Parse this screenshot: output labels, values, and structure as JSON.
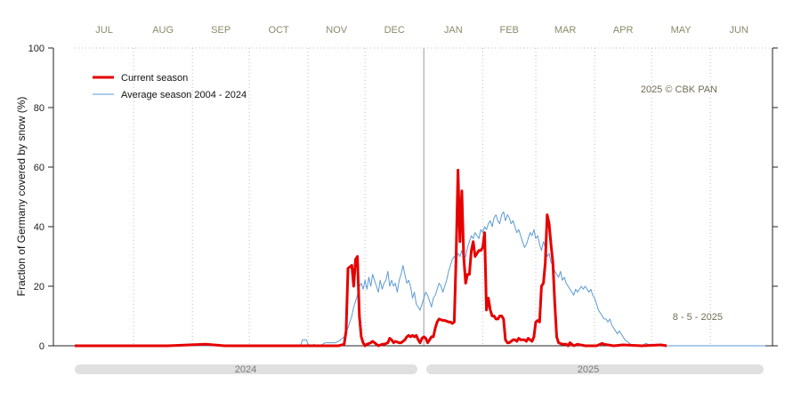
{
  "chart_data": {
    "type": "line",
    "ylabel": "Fraction of  Germany  covered by snow (%)",
    "ylim": [
      0,
      100
    ],
    "yticks": [
      0,
      20,
      40,
      60,
      80,
      100
    ],
    "months": [
      "JUL",
      "AUG",
      "SEP",
      "OCT",
      "NOV",
      "DEC",
      "JAN",
      "FEB",
      "MAR",
      "APR",
      "MAY",
      "JUN"
    ],
    "years": [
      "2024",
      "2025"
    ],
    "copyright": "2025  © CBK PAN",
    "date_stamp": "8 - 5 - 2025",
    "grid": "dotted vertical month lines",
    "legend_position": "top-left",
    "x_unit": "day of season (day 1 = 1 Jul)",
    "colors": {
      "current": "#e60000",
      "average": "#5b9bd5"
    },
    "series": [
      {
        "name": "Current season",
        "points": [
          [
            1,
            0
          ],
          [
            50,
            0
          ],
          [
            70,
            0.5
          ],
          [
            80,
            0
          ],
          [
            120,
            0
          ],
          [
            140,
            0
          ],
          [
            143,
            0.5
          ],
          [
            144,
            5
          ],
          [
            145,
            26
          ],
          [
            147,
            27
          ],
          [
            148,
            20
          ],
          [
            149,
            29
          ],
          [
            150,
            30
          ],
          [
            151,
            10
          ],
          [
            152,
            3
          ],
          [
            153,
            1
          ],
          [
            154,
            0
          ],
          [
            155,
            0.5
          ],
          [
            157,
            1
          ],
          [
            158,
            1.5
          ],
          [
            159,
            1
          ],
          [
            160,
            0.5
          ],
          [
            161,
            0
          ],
          [
            163,
            0.5
          ],
          [
            164,
            0.5
          ],
          [
            166,
            1
          ],
          [
            167,
            2.5
          ],
          [
            168,
            2
          ],
          [
            169,
            1
          ],
          [
            170,
            1.5
          ],
          [
            172,
            1
          ],
          [
            173,
            1
          ],
          [
            174,
            1.5
          ],
          [
            175,
            2
          ],
          [
            176,
            3
          ],
          [
            177,
            3.5
          ],
          [
            178,
            3
          ],
          [
            179,
            3.5
          ],
          [
            180,
            3
          ],
          [
            181,
            3.5
          ],
          [
            182,
            2
          ],
          [
            183,
            1
          ],
          [
            184,
            2.5
          ],
          [
            185,
            3
          ],
          [
            186,
            2.5
          ],
          [
            187,
            1
          ],
          [
            188,
            2
          ],
          [
            189,
            3
          ],
          [
            190,
            3
          ],
          [
            191,
            6
          ],
          [
            192,
            8
          ],
          [
            193,
            9
          ],
          [
            195,
            8.5
          ],
          [
            196,
            8.5
          ],
          [
            198,
            8
          ],
          [
            199,
            8
          ],
          [
            200,
            7.5
          ],
          [
            201,
            8
          ],
          [
            202,
            30
          ],
          [
            203,
            59
          ],
          [
            204,
            35
          ],
          [
            205,
            52
          ],
          [
            206,
            30
          ],
          [
            207,
            21
          ],
          [
            208,
            24
          ],
          [
            209,
            24
          ],
          [
            210,
            32
          ],
          [
            211,
            35
          ],
          [
            212,
            30
          ],
          [
            213,
            31
          ],
          [
            214,
            32
          ],
          [
            215,
            32
          ],
          [
            216,
            33
          ],
          [
            217,
            38
          ],
          [
            218,
            12
          ],
          [
            219,
            16
          ],
          [
            220,
            12
          ],
          [
            221,
            10
          ],
          [
            222,
            10
          ],
          [
            223,
            9
          ],
          [
            224,
            9
          ],
          [
            225,
            10
          ],
          [
            226,
            10
          ],
          [
            227,
            9
          ],
          [
            228,
            2
          ],
          [
            229,
            1
          ],
          [
            230,
            1
          ],
          [
            231,
            1.5
          ],
          [
            232,
            2
          ],
          [
            233,
            2
          ],
          [
            234,
            1.5
          ],
          [
            235,
            2.5
          ],
          [
            236,
            2
          ],
          [
            237,
            2
          ],
          [
            238,
            2
          ],
          [
            239,
            1.5
          ],
          [
            240,
            2.5
          ],
          [
            241,
            2
          ],
          [
            242,
            1.5
          ],
          [
            243,
            3
          ],
          [
            244,
            8
          ],
          [
            245,
            8.5
          ],
          [
            246,
            8
          ],
          [
            247,
            20
          ],
          [
            248,
            21
          ],
          [
            249,
            28
          ],
          [
            250,
            44
          ],
          [
            251,
            41
          ],
          [
            252,
            34
          ],
          [
            253,
            28
          ],
          [
            254,
            14
          ],
          [
            255,
            3
          ],
          [
            256,
            1
          ],
          [
            258,
            0.5
          ],
          [
            260,
            0.5
          ],
          [
            261,
            0
          ],
          [
            262,
            1
          ],
          [
            263,
            0.5
          ],
          [
            264,
            0
          ],
          [
            266,
            0.5
          ],
          [
            270,
            0
          ],
          [
            276,
            0
          ],
          [
            278,
            0.5
          ],
          [
            279,
            0.8
          ],
          [
            280,
            0.5
          ],
          [
            285,
            0
          ],
          [
            290,
            0.3
          ],
          [
            300,
            0
          ],
          [
            310,
            0.3
          ],
          [
            313,
            0
          ]
        ]
      },
      {
        "name": "Average season 2004 - 2024",
        "points": [
          [
            1,
            0
          ],
          [
            100,
            0
          ],
          [
            120,
            0
          ],
          [
            121,
            2
          ],
          [
            123,
            2
          ],
          [
            124,
            0.5
          ],
          [
            126,
            0
          ],
          [
            127,
            0.5
          ],
          [
            128,
            0
          ],
          [
            130,
            0
          ],
          [
            131,
            0.3
          ],
          [
            133,
            1
          ],
          [
            136,
            1
          ],
          [
            138,
            1
          ],
          [
            140,
            1.5
          ],
          [
            141,
            2
          ],
          [
            142,
            2.5
          ],
          [
            143,
            3
          ],
          [
            144,
            5
          ],
          [
            145,
            6
          ],
          [
            146,
            8
          ],
          [
            147,
            10
          ],
          [
            148,
            13
          ],
          [
            149,
            15
          ],
          [
            150,
            17
          ],
          [
            151,
            20
          ],
          [
            152,
            21
          ],
          [
            153,
            19
          ],
          [
            154,
            22
          ],
          [
            155,
            19
          ],
          [
            156,
            23
          ],
          [
            157,
            20
          ],
          [
            158,
            24
          ],
          [
            159,
            22
          ],
          [
            160,
            20
          ],
          [
            161,
            18
          ],
          [
            162,
            22
          ],
          [
            163,
            19
          ],
          [
            164,
            21
          ],
          [
            165,
            22
          ],
          [
            166,
            25
          ],
          [
            167,
            20
          ],
          [
            168,
            22
          ],
          [
            169,
            20
          ],
          [
            170,
            21
          ],
          [
            171,
            18
          ],
          [
            172,
            22
          ],
          [
            173,
            24
          ],
          [
            174,
            27
          ],
          [
            175,
            24
          ],
          [
            176,
            21
          ],
          [
            177,
            22
          ],
          [
            178,
            20
          ],
          [
            179,
            16
          ],
          [
            180,
            18
          ],
          [
            181,
            14
          ],
          [
            182,
            13
          ],
          [
            183,
            12
          ],
          [
            184,
            14
          ],
          [
            185,
            16
          ],
          [
            186,
            18
          ],
          [
            187,
            17
          ],
          [
            188,
            15
          ],
          [
            189,
            13
          ],
          [
            190,
            16
          ],
          [
            191,
            17
          ],
          [
            192,
            19
          ],
          [
            193,
            21
          ],
          [
            194,
            20
          ],
          [
            195,
            18
          ],
          [
            196,
            20
          ],
          [
            197,
            22
          ],
          [
            198,
            25
          ],
          [
            199,
            27
          ],
          [
            200,
            29
          ],
          [
            201,
            30
          ],
          [
            202,
            29
          ],
          [
            203,
            31
          ],
          [
            204,
            30
          ],
          [
            205,
            32
          ],
          [
            206,
            29
          ],
          [
            207,
            30
          ],
          [
            208,
            33
          ],
          [
            209,
            35
          ],
          [
            210,
            37
          ],
          [
            211,
            36
          ],
          [
            212,
            38
          ],
          [
            213,
            37
          ],
          [
            214,
            36
          ],
          [
            215,
            39
          ],
          [
            216,
            38
          ],
          [
            217,
            40
          ],
          [
            218,
            39
          ],
          [
            219,
            41
          ],
          [
            220,
            42
          ],
          [
            221,
            40
          ],
          [
            222,
            43
          ],
          [
            223,
            44
          ],
          [
            224,
            42
          ],
          [
            225,
            41
          ],
          [
            226,
            44
          ],
          [
            227,
            45
          ],
          [
            228,
            42
          ],
          [
            229,
            44
          ],
          [
            230,
            43
          ],
          [
            231,
            41
          ],
          [
            232,
            42
          ],
          [
            233,
            40
          ],
          [
            234,
            38
          ],
          [
            235,
            39
          ],
          [
            236,
            37
          ],
          [
            237,
            35
          ],
          [
            238,
            33
          ],
          [
            239,
            34
          ],
          [
            240,
            36
          ],
          [
            241,
            38
          ],
          [
            242,
            37
          ],
          [
            243,
            39
          ],
          [
            244,
            36
          ],
          [
            245,
            37
          ],
          [
            246,
            34
          ],
          [
            247,
            32
          ],
          [
            248,
            35
          ],
          [
            249,
            33
          ],
          [
            250,
            30
          ],
          [
            251,
            31
          ],
          [
            252,
            28
          ],
          [
            253,
            27
          ],
          [
            254,
            25
          ],
          [
            255,
            24
          ],
          [
            256,
            23
          ],
          [
            257,
            25
          ],
          [
            258,
            22
          ],
          [
            259,
            23
          ],
          [
            260,
            21
          ],
          [
            261,
            20
          ],
          [
            262,
            19
          ],
          [
            263,
            18
          ],
          [
            264,
            17
          ],
          [
            265,
            19
          ],
          [
            266,
            18
          ],
          [
            267,
            19
          ],
          [
            268,
            20
          ],
          [
            269,
            19
          ],
          [
            270,
            20
          ],
          [
            271,
            19
          ],
          [
            272,
            18
          ],
          [
            273,
            19
          ],
          [
            274,
            17
          ],
          [
            275,
            16
          ],
          [
            276,
            14
          ],
          [
            277,
            12
          ],
          [
            278,
            11
          ],
          [
            279,
            10
          ],
          [
            280,
            9
          ],
          [
            281,
            9
          ],
          [
            282,
            8
          ],
          [
            283,
            9
          ],
          [
            284,
            7
          ],
          [
            285,
            6
          ],
          [
            286,
            5
          ],
          [
            287,
            4
          ],
          [
            288,
            5
          ],
          [
            289,
            4
          ],
          [
            290,
            3
          ],
          [
            291,
            2
          ],
          [
            292,
            1.5
          ],
          [
            293,
            1
          ],
          [
            294,
            0.5
          ],
          [
            296,
            0
          ],
          [
            300,
            0
          ],
          [
            302,
            0.8
          ],
          [
            304,
            0.3
          ],
          [
            308,
            0.5
          ],
          [
            312,
            0
          ],
          [
            320,
            0
          ],
          [
            330,
            0
          ],
          [
            340,
            0
          ],
          [
            350,
            0
          ],
          [
            360,
            0
          ],
          [
            365,
            0
          ]
        ]
      }
    ]
  }
}
